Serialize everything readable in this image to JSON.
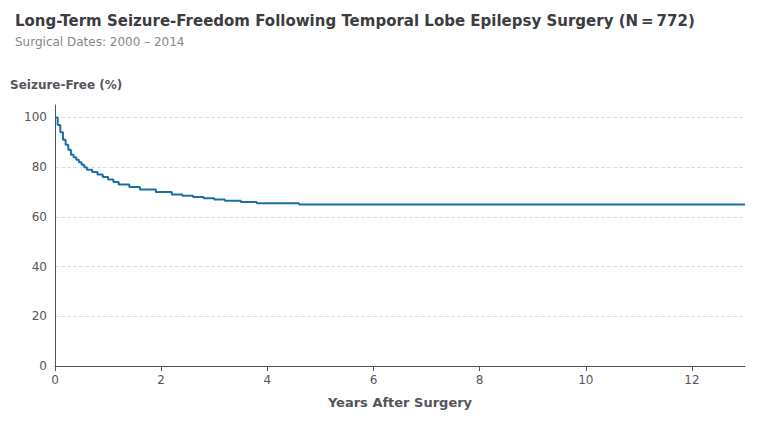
{
  "chart_data": {
    "type": "line",
    "title": "Long-Term Seizure-Freedom Following Temporal Lobe Epilepsy Surgery (N = 772)",
    "subtitle": "Surgical Dates: 2000 – 2014",
    "xlabel": "Years After Surgery",
    "ylabel": "Seizure-Free (%)",
    "color": "#1B6FA8",
    "line_style": "step",
    "grid": true,
    "xlim": [
      0,
      13
    ],
    "ylim": [
      0,
      105
    ],
    "xticks": [
      0,
      2,
      4,
      6,
      8,
      10,
      12
    ],
    "yticks": [
      0,
      20,
      40,
      60,
      80,
      100
    ],
    "x": [
      0.0,
      0.05,
      0.1,
      0.15,
      0.2,
      0.25,
      0.3,
      0.35,
      0.4,
      0.45,
      0.5,
      0.55,
      0.6,
      0.65,
      0.7,
      0.75,
      0.8,
      0.85,
      0.9,
      0.95,
      1.0,
      1.1,
      1.2,
      1.3,
      1.4,
      1.5,
      1.6,
      1.7,
      1.8,
      1.9,
      2.0,
      2.2,
      2.4,
      2.6,
      2.8,
      3.0,
      3.2,
      3.5,
      3.8,
      4.0,
      4.3,
      4.6,
      4.9,
      5.0,
      5.4,
      5.8,
      6.0,
      7.0,
      8.0,
      9.0,
      10.0,
      11.0,
      12.0,
      13.0
    ],
    "values": [
      100,
      97,
      94,
      91,
      89,
      87,
      85,
      84,
      83,
      82,
      81,
      80,
      79,
      79,
      78,
      78,
      77,
      77,
      76,
      76,
      75,
      74,
      73,
      73,
      72,
      72,
      71,
      71,
      71,
      70,
      70,
      69,
      68.5,
      68,
      67.5,
      67,
      66.5,
      66,
      65.5,
      65.5,
      65.5,
      65,
      65,
      65,
      65,
      65,
      65,
      65,
      65,
      65,
      65,
      65,
      65,
      65
    ]
  }
}
